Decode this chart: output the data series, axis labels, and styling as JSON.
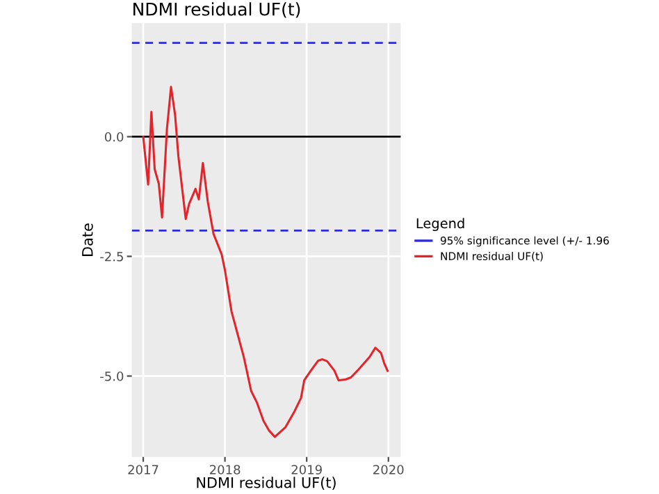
{
  "chart_data": {
    "type": "line",
    "title": "NDMI residual UF(t)",
    "xlabel": "NDMI residual UF(t)",
    "ylabel": "Date",
    "legend_title": "Legend",
    "series": [
      {
        "name": "NDMI residual UF(t)",
        "color": "#e3242b",
        "x": [
          2017.0,
          2017.06,
          2017.1,
          2017.14,
          2017.19,
          2017.23,
          2017.29,
          2017.34,
          2017.39,
          2017.43,
          2017.52,
          2017.56,
          2017.64,
          2017.68,
          2017.73,
          2017.79,
          2017.86,
          2017.96,
          2018.0,
          2018.08,
          2018.23,
          2018.32,
          2018.39,
          2018.47,
          2018.54,
          2018.61,
          2018.74,
          2018.85,
          2018.93,
          2018.97,
          2019.05,
          2019.14,
          2019.19,
          2019.25,
          2019.34,
          2019.39,
          2019.48,
          2019.54,
          2019.62,
          2019.77,
          2019.84,
          2019.91,
          2019.95,
          2019.99
        ],
        "values": [
          0.0,
          -1.0,
          0.52,
          -0.68,
          -0.98,
          -1.69,
          0.16,
          1.04,
          0.45,
          -0.41,
          -1.72,
          -1.41,
          -1.09,
          -1.31,
          -0.55,
          -1.36,
          -2.03,
          -2.46,
          -2.79,
          -3.65,
          -4.6,
          -5.31,
          -5.55,
          -5.93,
          -6.14,
          -6.27,
          -6.07,
          -5.74,
          -5.46,
          -5.09,
          -4.89,
          -4.68,
          -4.65,
          -4.69,
          -4.89,
          -5.09,
          -5.07,
          -5.03,
          -4.89,
          -4.6,
          -4.41,
          -4.52,
          -4.74,
          -4.89
        ]
      }
    ],
    "ref_lines": [
      {
        "axis": "y",
        "value": 1.96,
        "label": "95% significance level (+/- 1.96",
        "color": "#2b2bd9",
        "line_style": "dashed"
      },
      {
        "axis": "y",
        "value": -1.96,
        "label": null,
        "color": "#2b2bd9",
        "line_style": "dashed"
      },
      {
        "axis": "y",
        "value": 0,
        "label": null,
        "color": "#000000",
        "line_style": "solid"
      }
    ],
    "xlim": [
      2016.86,
      2020.15
    ],
    "xticks": [
      2017,
      2018,
      2019,
      2020
    ],
    "ylim": [
      -6.69,
      2.37
    ],
    "yticks": [
      {
        "value": 0,
        "label": "0.0"
      },
      {
        "value": -2.5,
        "label": "-2.5"
      },
      {
        "value": -5.0,
        "label": "-5.0"
      }
    ],
    "grid": true,
    "legend": "right"
  }
}
